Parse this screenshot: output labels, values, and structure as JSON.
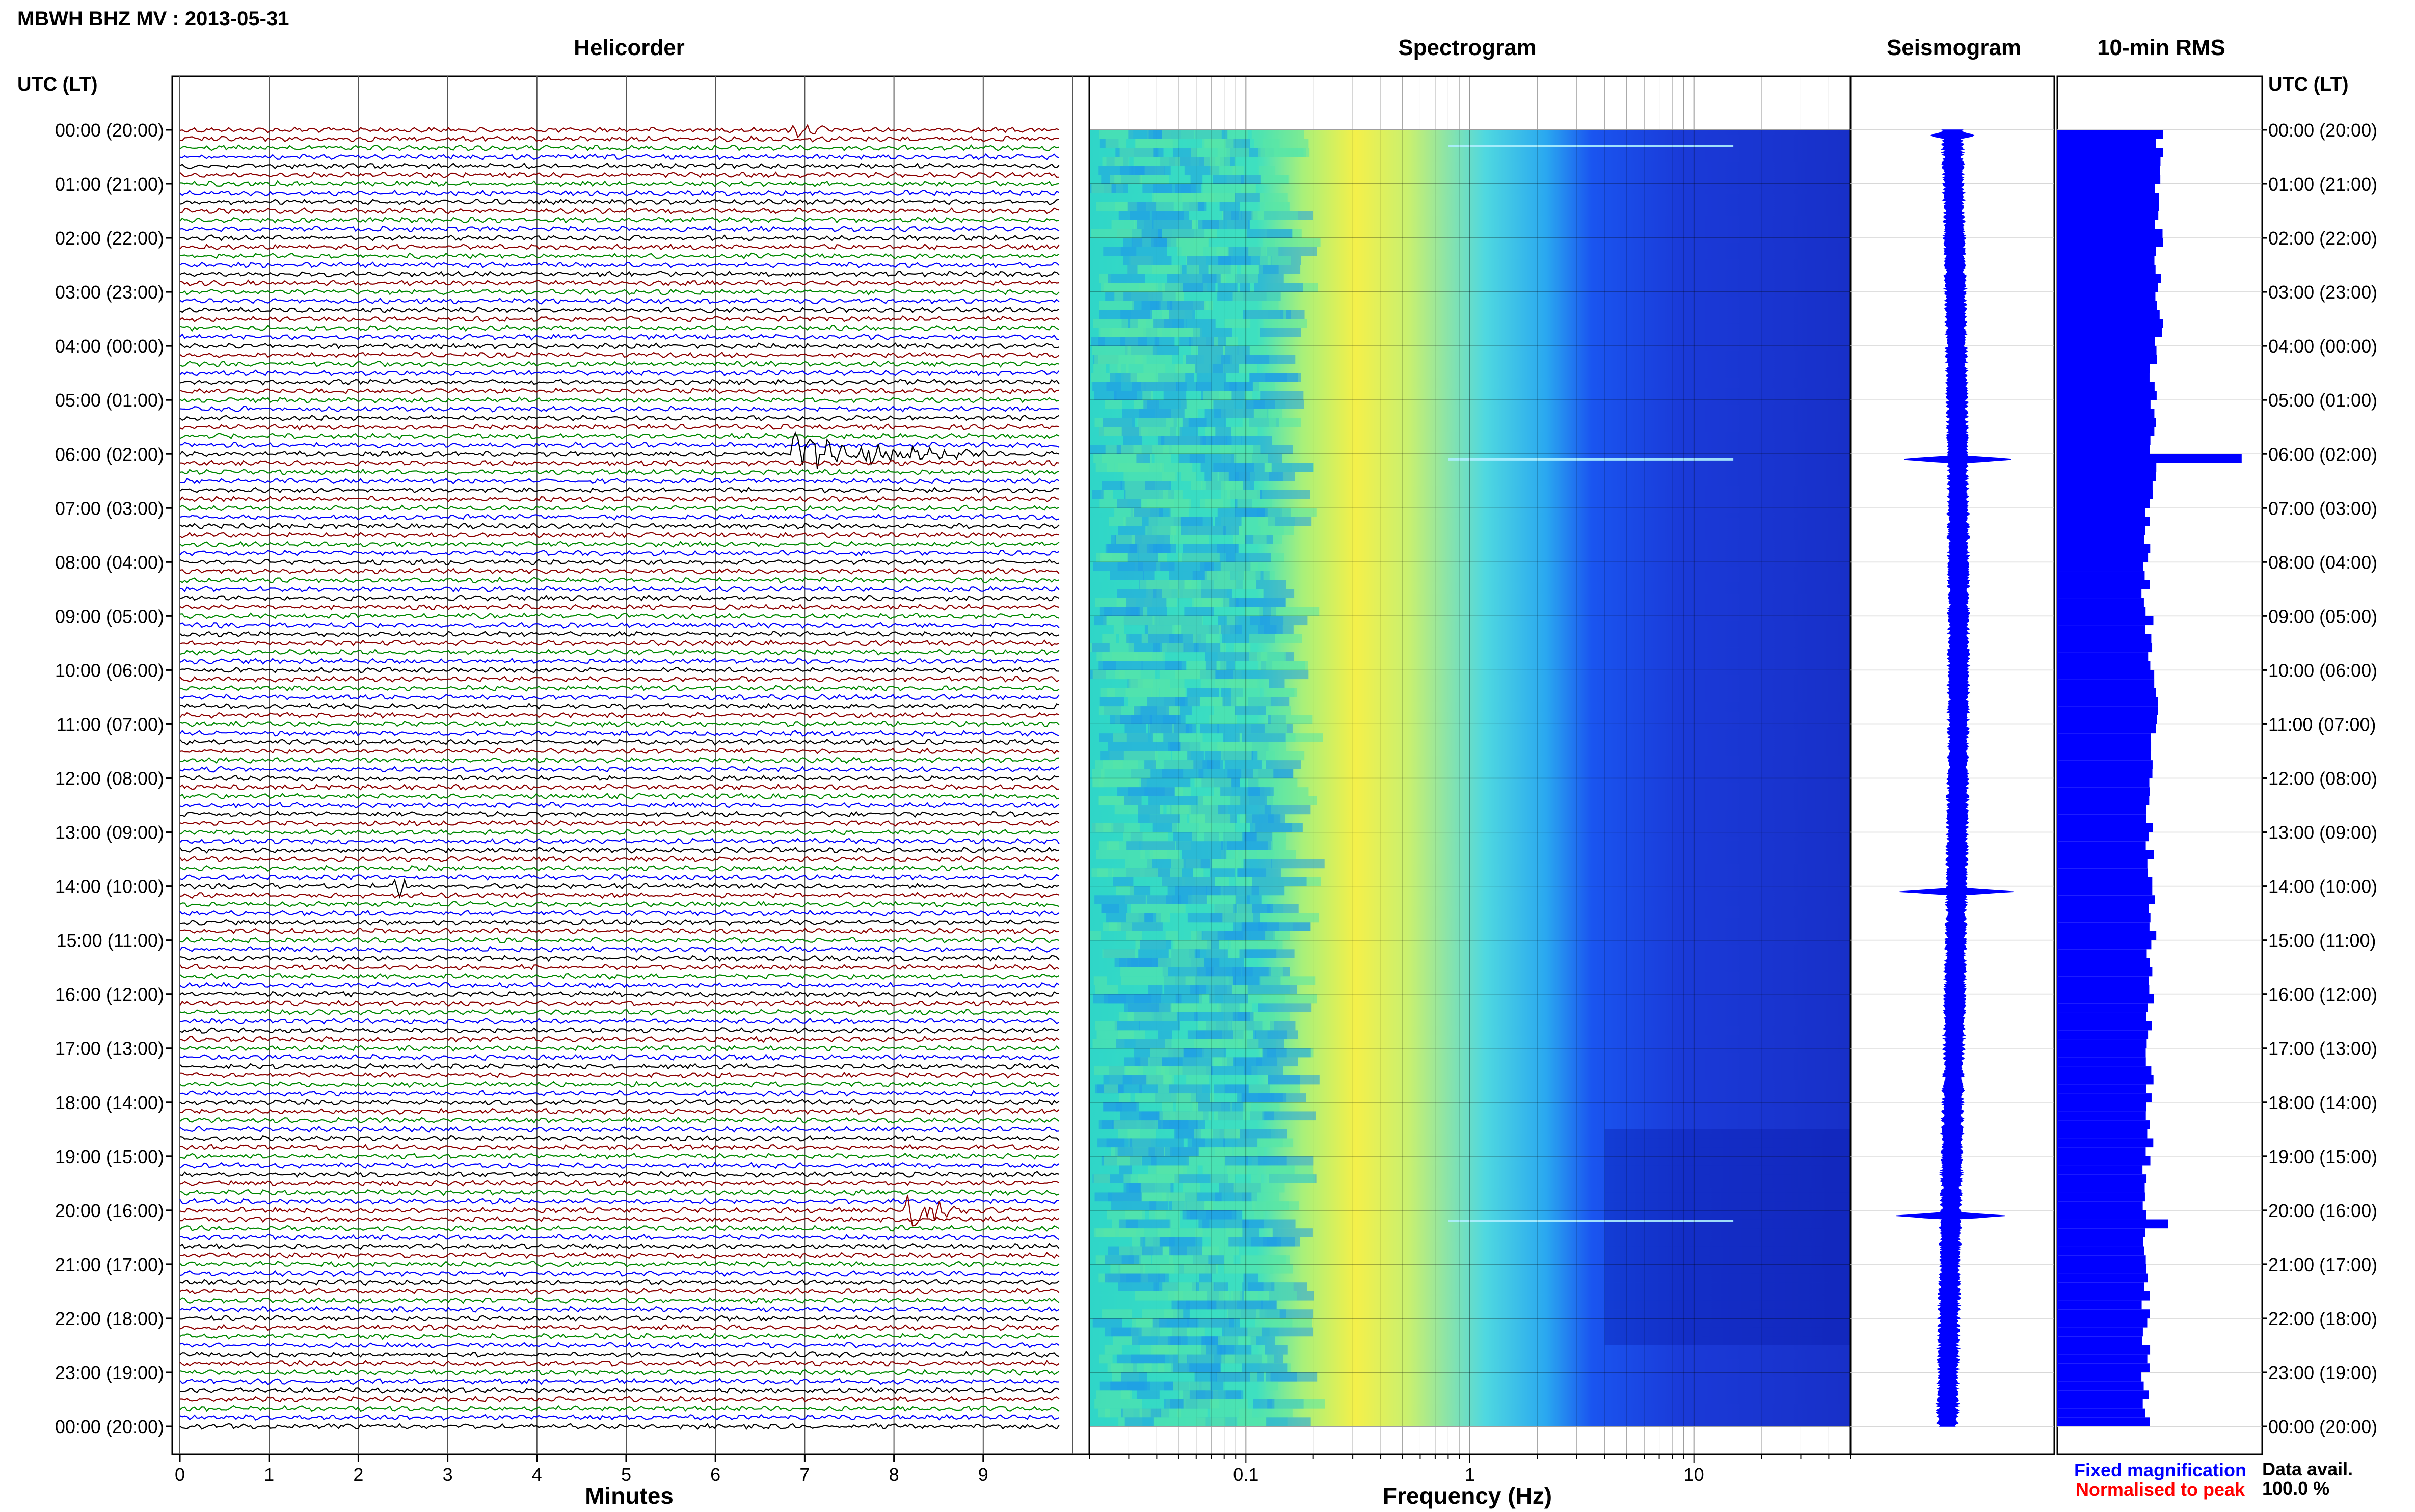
{
  "header": {
    "title": "MBWH BHZ MV : 2013-05-31"
  },
  "panels": {
    "helicorder": "Helicorder",
    "spectrogram": "Spectrogram",
    "seismogram": "Seismogram",
    "rms": "10-min RMS"
  },
  "axis": {
    "utc_label": "UTC (LT)",
    "minutes_label": "Minutes",
    "frequency_label": "Frequency (Hz)"
  },
  "legend": {
    "fixed": "Fixed magnification",
    "normalised": "Normalised to peak",
    "fixed_color": "#0000ff",
    "normalised_color": "#ff0000"
  },
  "availability": {
    "label": "Data avail.",
    "value": "100.0 %"
  },
  "colors": {
    "trace_cycle": [
      "#000000",
      "#8b0000",
      "#008800",
      "#0000ff"
    ],
    "rms_bar": "#0000ff",
    "seismogram": "#0000ff"
  },
  "chart_data": [
    {
      "type": "line",
      "panel": "helicorder",
      "title": "Helicorder",
      "xlabel": "Minutes",
      "x_ticks": [
        "0",
        "1",
        "2",
        "3",
        "4",
        "5",
        "6",
        "7",
        "8",
        "9"
      ],
      "xlim": [
        0,
        10
      ],
      "row_labels": [
        "00:00 (20:00)",
        "01:00 (21:00)",
        "02:00 (22:00)",
        "03:00 (23:00)",
        "04:00 (00:00)",
        "05:00 (01:00)",
        "06:00 (02:00)",
        "07:00 (03:00)",
        "08:00 (04:00)",
        "09:00 (05:00)",
        "10:00 (06:00)",
        "11:00 (07:00)",
        "12:00 (08:00)",
        "13:00 (09:00)",
        "14:00 (10:00)",
        "15:00 (11:00)",
        "16:00 (12:00)",
        "17:00 (13:00)",
        "18:00 (14:00)",
        "19:00 (15:00)",
        "20:00 (16:00)",
        "21:00 (17:00)",
        "22:00 (18:00)",
        "23:00 (19:00)",
        "00:00 (20:00)"
      ],
      "rows_per_hour": 6,
      "events": [
        {
          "hour": 0,
          "row": 0,
          "start_min": 6.8,
          "duration_min": 0.6,
          "amp": 0.6
        },
        {
          "hour": 6,
          "row": 0,
          "start_min": 6.8,
          "duration_min": 2.3,
          "amp": 1.4
        },
        {
          "hour": 14,
          "row": 0,
          "start_min": 2.4,
          "duration_min": 0.3,
          "amp": 1.0
        },
        {
          "hour": 20,
          "row": 0,
          "start_min": 8.1,
          "duration_min": 0.8,
          "amp": 1.6
        }
      ]
    },
    {
      "type": "heatmap",
      "panel": "spectrogram",
      "title": "Spectrogram",
      "xlabel": "Frequency (Hz)",
      "x_scale": "log",
      "xlim": [
        0.02,
        50
      ],
      "x_ticks": [
        "0.1",
        "1",
        "10"
      ],
      "colormap": [
        "#00ffff",
        "#ffff00",
        "#00aaff",
        "#0000ff"
      ]
    },
    {
      "type": "line",
      "panel": "seismogram",
      "title": "Seismogram",
      "spikes_at_hours": [
        0,
        6,
        14,
        20
      ]
    },
    {
      "type": "bar",
      "panel": "rms",
      "title": "10-min RMS",
      "orientation": "horizontal",
      "categories_note": "one bar per 10 minutes, 144 bars, 00:00 to 24:00",
      "spikes": [
        {
          "hour": 6.0,
          "value": 1.0
        },
        {
          "hour": 20.1,
          "value": 0.6
        }
      ],
      "baseline_hourly": [
        0.55,
        0.55,
        0.55,
        0.55,
        0.52,
        0.52,
        0.52,
        0.48,
        0.48,
        0.5,
        0.55,
        0.52,
        0.5,
        0.5,
        0.52,
        0.5,
        0.5,
        0.5,
        0.5,
        0.48,
        0.48,
        0.48,
        0.48,
        0.48
      ]
    }
  ]
}
